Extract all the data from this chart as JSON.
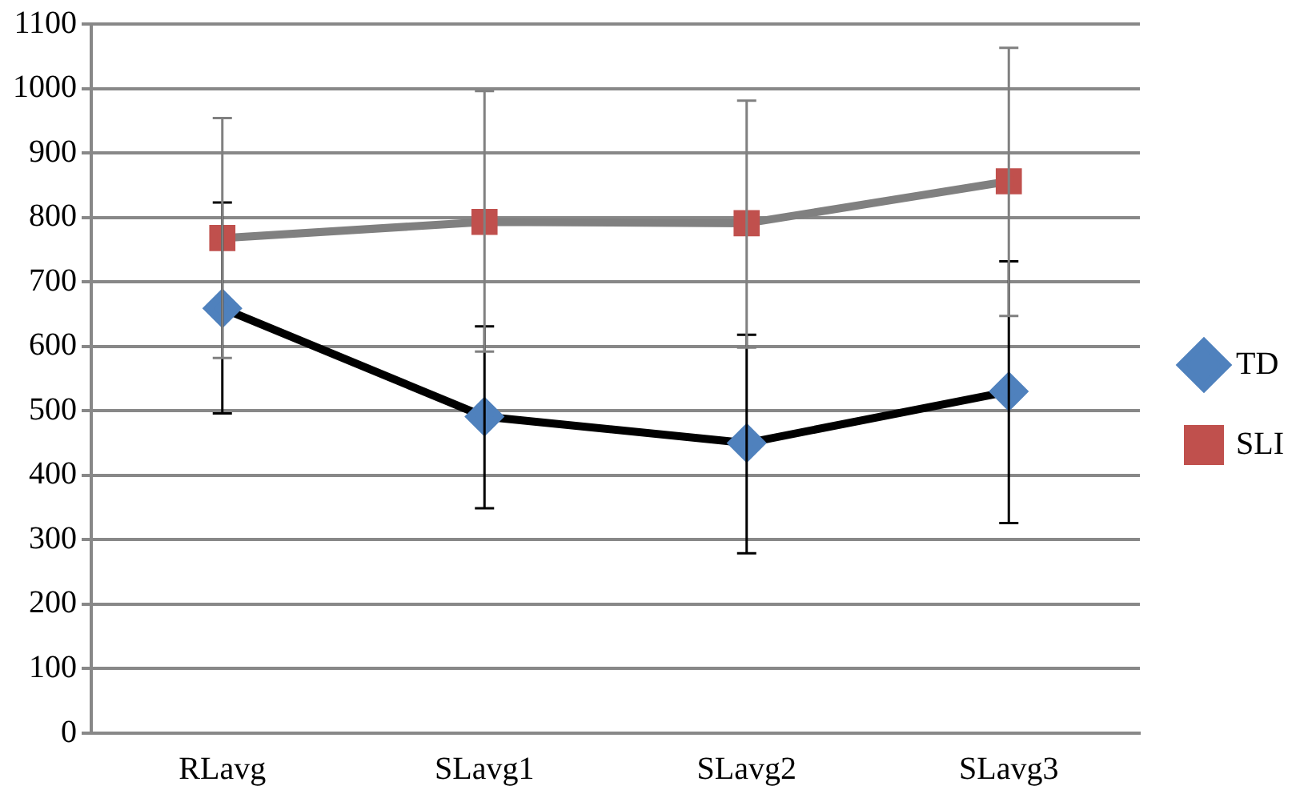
{
  "chart_data": {
    "type": "line",
    "categories": [
      "RLavg",
      "SLavg1",
      "SLavg2",
      "SLavg3"
    ],
    "series": [
      {
        "name": "TD",
        "color": "#000000",
        "colors": [
          "#4f81bd",
          "#4f81bd",
          "#4f81bd",
          "#4f81bd"
        ],
        "marker": "diamond",
        "values": [
          659,
          491,
          450,
          530
        ],
        "errors": [
          [
            496,
            823
          ],
          [
            349,
            631
          ],
          [
            279,
            618
          ],
          [
            326,
            732
          ]
        ]
      },
      {
        "name": "SLI",
        "color": "#808080",
        "colors": [
          "#c0504d",
          "#c0504d",
          "#c0504d",
          "#c0504d"
        ],
        "marker": "square",
        "values": [
          768,
          793,
          791,
          856
        ],
        "errors": [
          [
            582,
            954
          ],
          [
            592,
            996
          ],
          [
            598,
            981
          ],
          [
            647,
            1063
          ]
        ]
      }
    ],
    "ylim": [
      0,
      1100
    ],
    "yticks": [
      0,
      100,
      200,
      300,
      400,
      500,
      600,
      700,
      800,
      900,
      1000,
      1100
    ],
    "grid": "y",
    "legend": "right",
    "line_style": "solid"
  }
}
